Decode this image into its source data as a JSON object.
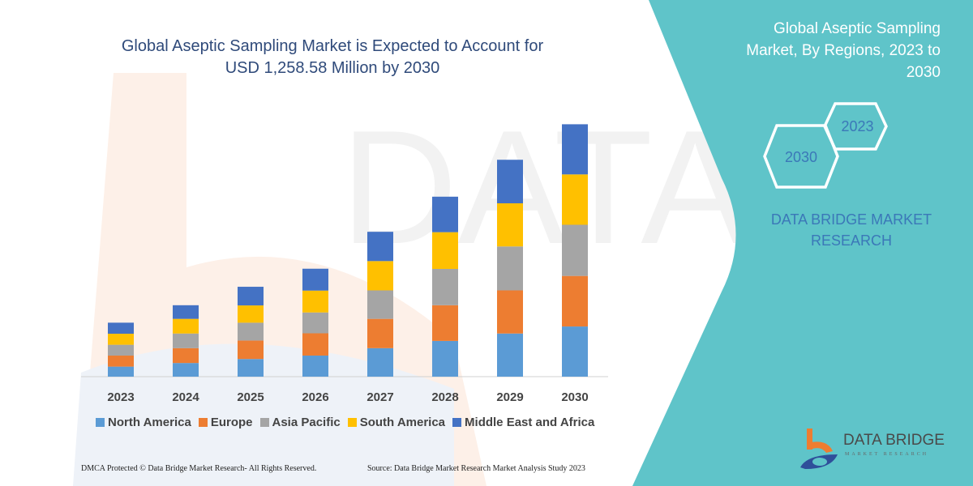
{
  "title": "Global Aseptic Sampling Market is Expected to Account for USD 1,258.58 Million by 2030",
  "title_lines": [
    "Global Aseptic Sampling Market is Expected to Account for",
    "USD 1,258.58 Million by 2030"
  ],
  "side_panel": {
    "title_lines": [
      "Global Aseptic Sampling",
      "Market, By Regions, 2023 to",
      "2030"
    ],
    "hex_years": [
      "2023",
      "2030"
    ],
    "brand_lines": [
      "DATA BRIDGE MARKET",
      "RESEARCH"
    ],
    "color": "#5fc4c9"
  },
  "logo": {
    "name": "DATA BRIDGE",
    "sub": "MARKET RESEARCH"
  },
  "footer": {
    "left": "DMCA Protected © Data Bridge Market Research-  All Rights Reserved.",
    "right": "Source: Data Bridge Market Research  Market Analysis Study 2023"
  },
  "chart_data": {
    "type": "bar",
    "stacked": true,
    "title": "Global Aseptic Sampling Market is Expected to Account for USD 1,258.58 Million by 2030",
    "xlabel": "",
    "ylabel": "",
    "categories": [
      "2023",
      "2024",
      "2025",
      "2026",
      "2027",
      "2028",
      "2029",
      "2030"
    ],
    "ylim": [
      0,
      1300
    ],
    "grid": false,
    "legend_position": "bottom",
    "series": [
      {
        "name": "North America",
        "color": "#5b9bd5",
        "values": [
          50,
          68,
          88,
          105,
          142,
          178,
          215,
          250
        ]
      },
      {
        "name": "Europe",
        "color": "#ed7d31",
        "values": [
          55,
          74,
          92,
          111,
          146,
          178,
          215,
          252
        ]
      },
      {
        "name": "Asia Pacific",
        "color": "#a5a5a5",
        "values": [
          54,
          73,
          89,
          104,
          142,
          181,
          219,
          255
        ]
      },
      {
        "name": "South America",
        "color": "#ffc000",
        "values": [
          55,
          73,
          86,
          109,
          146,
          183,
          215,
          251
        ]
      },
      {
        "name": "Middle East and Africa",
        "color": "#4472c4",
        "values": [
          55,
          68,
          93,
          109,
          146,
          177,
          217,
          250
        ]
      }
    ]
  }
}
